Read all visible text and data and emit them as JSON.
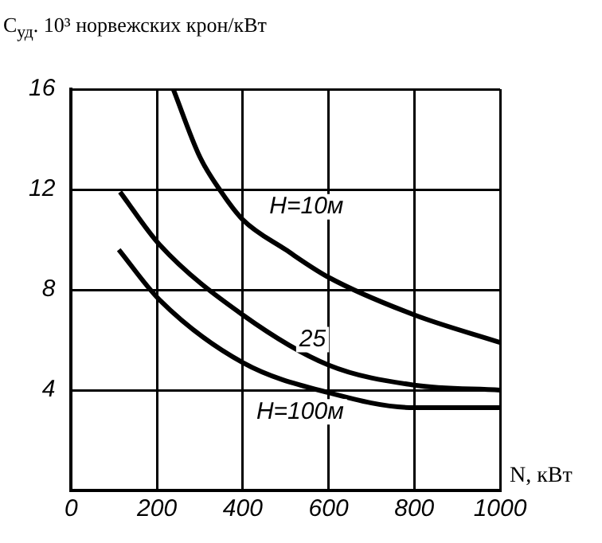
{
  "chart_data": {
    "type": "line",
    "ylabel": "C$_{уд}$. 10³ норвежских крон/кВт",
    "xlabel": "N, кВт",
    "xlim": [
      0,
      1000
    ],
    "xticks": [
      0,
      200,
      400,
      600,
      800,
      1000
    ],
    "ylim": [
      0,
      16
    ],
    "yticks": [
      4,
      8,
      12,
      16
    ],
    "grid": true,
    "legend": false,
    "marker": "none",
    "line_style": "solid",
    "series": [
      {
        "name": "H=10м",
        "color": "#000000",
        "x": [
          238,
          300,
          350,
          400,
          500,
          600,
          800,
          1000
        ],
        "values": [
          16,
          13.3,
          11.9,
          10.8,
          9.6,
          8.5,
          7,
          5.9
        ]
      },
      {
        "name": "25",
        "color": "#000000",
        "x": [
          114,
          206,
          400,
          600,
          800,
          1000
        ],
        "values": [
          11.9,
          9.8,
          7,
          5,
          4.2,
          4
        ]
      },
      {
        "name": "H=100м",
        "color": "#000000",
        "x": [
          111,
          206,
          400,
          600,
          800,
          1000
        ],
        "values": [
          9.6,
          7.6,
          5.1,
          3.9,
          3.3,
          3.3
        ]
      }
    ]
  }
}
